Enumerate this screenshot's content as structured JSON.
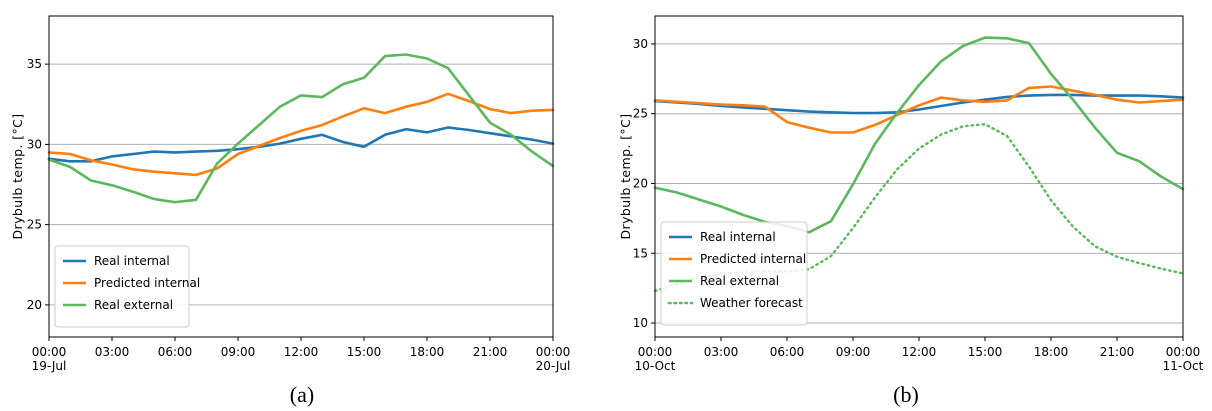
{
  "chart_data": [
    {
      "type": "line",
      "caption": "(a)",
      "ylabel": "Drybulb temp. [°C]",
      "ylim": [
        18.0,
        38.0
      ],
      "yticks": [
        20,
        25,
        30,
        35
      ],
      "xlim": [
        0,
        24
      ],
      "xticks": [
        {
          "x": 0,
          "label": "00:00",
          "sublabel": "19-Jul"
        },
        {
          "x": 3,
          "label": "03:00",
          "sublabel": ""
        },
        {
          "x": 6,
          "label": "06:00",
          "sublabel": ""
        },
        {
          "x": 9,
          "label": "09:00",
          "sublabel": ""
        },
        {
          "x": 12,
          "label": "12:00",
          "sublabel": ""
        },
        {
          "x": 15,
          "label": "15:00",
          "sublabel": ""
        },
        {
          "x": 18,
          "label": "18:00",
          "sublabel": ""
        },
        {
          "x": 21,
          "label": "21:00",
          "sublabel": ""
        },
        {
          "x": 24,
          "label": "00:00",
          "sublabel": "20-Jul"
        }
      ],
      "grid": "horizontal",
      "legend_position": "lower-left",
      "series": [
        {
          "name": "Real internal",
          "color": "#1f77b4",
          "style": "solid",
          "x": [
            0,
            1,
            2,
            3,
            4,
            5,
            6,
            7,
            8,
            9,
            10,
            11,
            12,
            13,
            14,
            15,
            16,
            17,
            18,
            19,
            20,
            21,
            22,
            23,
            24
          ],
          "y": [
            29.1,
            28.95,
            28.95,
            29.25,
            29.4,
            29.55,
            29.5,
            29.55,
            29.6,
            29.7,
            29.85,
            30.05,
            30.35,
            30.6,
            30.15,
            29.85,
            30.6,
            30.95,
            30.75,
            31.05,
            30.9,
            30.7,
            30.5,
            30.3,
            30.05
          ]
        },
        {
          "name": "Predicted internal",
          "color": "#ff7f0e",
          "style": "solid",
          "x": [
            0,
            1,
            2,
            3,
            4,
            5,
            6,
            7,
            8,
            9,
            10,
            11,
            12,
            13,
            14,
            15,
            16,
            17,
            18,
            19,
            20,
            21,
            22,
            23,
            24
          ],
          "y": [
            29.5,
            29.4,
            29.0,
            28.75,
            28.45,
            28.3,
            28.2,
            28.1,
            28.5,
            29.4,
            29.9,
            30.4,
            30.85,
            31.2,
            31.75,
            32.25,
            31.95,
            32.35,
            32.65,
            33.15,
            32.7,
            32.2,
            31.95,
            32.1,
            32.15
          ]
        },
        {
          "name": "Real external",
          "color": "#5cb85c",
          "style": "solid",
          "x": [
            0,
            1,
            2,
            3,
            4,
            5,
            6,
            7,
            8,
            9,
            10,
            11,
            12,
            13,
            14,
            15,
            16,
            17,
            18,
            19,
            20,
            21,
            22,
            23,
            24
          ],
          "y": [
            29.05,
            28.6,
            27.75,
            27.45,
            27.05,
            26.6,
            26.4,
            26.55,
            28.8,
            30.05,
            31.2,
            32.35,
            33.05,
            32.95,
            33.75,
            34.15,
            35.5,
            35.6,
            35.35,
            34.75,
            33.05,
            31.35,
            30.6,
            29.55,
            28.65
          ]
        }
      ]
    },
    {
      "type": "line",
      "caption": "(b)",
      "ylabel": "Drybulb temp. [°C]",
      "ylim": [
        9.0,
        32.0
      ],
      "yticks": [
        10,
        15,
        20,
        25,
        30
      ],
      "xlim": [
        0,
        24
      ],
      "xticks": [
        {
          "x": 0,
          "label": "00:00",
          "sublabel": "10-Oct"
        },
        {
          "x": 3,
          "label": "03:00",
          "sublabel": ""
        },
        {
          "x": 6,
          "label": "06:00",
          "sublabel": ""
        },
        {
          "x": 9,
          "label": "09:00",
          "sublabel": ""
        },
        {
          "x": 12,
          "label": "12:00",
          "sublabel": ""
        },
        {
          "x": 15,
          "label": "15:00",
          "sublabel": ""
        },
        {
          "x": 18,
          "label": "18:00",
          "sublabel": ""
        },
        {
          "x": 21,
          "label": "21:00",
          "sublabel": ""
        },
        {
          "x": 24,
          "label": "00:00",
          "sublabel": "11-Oct"
        }
      ],
      "grid": "horizontal",
      "legend_position": "lower-left",
      "series": [
        {
          "name": "Real internal",
          "color": "#1f77b4",
          "style": "solid",
          "x": [
            0,
            1,
            2,
            3,
            4,
            5,
            6,
            7,
            8,
            9,
            10,
            11,
            12,
            13,
            14,
            15,
            16,
            17,
            18,
            19,
            20,
            21,
            22,
            23,
            24
          ],
          "y": [
            25.9,
            25.8,
            25.7,
            25.55,
            25.45,
            25.35,
            25.25,
            25.15,
            25.1,
            25.05,
            25.05,
            25.1,
            25.3,
            25.55,
            25.8,
            26.0,
            26.2,
            26.3,
            26.35,
            26.35,
            26.3,
            26.3,
            26.3,
            26.25,
            26.15
          ]
        },
        {
          "name": "Predicted internal",
          "color": "#ff7f0e",
          "style": "solid",
          "x": [
            0,
            1,
            2,
            3,
            4,
            5,
            6,
            7,
            8,
            9,
            10,
            11,
            12,
            13,
            14,
            15,
            16,
            17,
            18,
            19,
            20,
            21,
            22,
            23,
            24
          ],
          "y": [
            25.95,
            25.85,
            25.75,
            25.65,
            25.6,
            25.5,
            24.4,
            24.0,
            23.65,
            23.65,
            24.2,
            24.9,
            25.6,
            26.15,
            25.95,
            25.85,
            25.95,
            26.85,
            26.95,
            26.65,
            26.35,
            26.0,
            25.8,
            25.9,
            26.0
          ]
        },
        {
          "name": "Real external",
          "color": "#5cb85c",
          "style": "solid",
          "x": [
            0,
            1,
            2,
            3,
            4,
            5,
            6,
            7,
            8,
            9,
            10,
            11,
            12,
            13,
            14,
            15,
            16,
            17,
            18,
            19,
            20,
            21,
            22,
            23,
            24
          ],
          "y": [
            19.7,
            19.35,
            18.85,
            18.35,
            17.75,
            17.25,
            16.95,
            16.5,
            17.3,
            19.95,
            22.85,
            25.05,
            27.05,
            28.75,
            29.85,
            30.45,
            30.4,
            30.05,
            27.85,
            26.0,
            24.0,
            22.2,
            21.6,
            20.5,
            19.6
          ]
        },
        {
          "name": "Weather forecast",
          "color": "#5cb85c",
          "style": "dotted",
          "x": [
            0,
            1,
            2,
            3,
            4,
            5,
            6,
            7,
            8,
            9,
            10,
            11,
            12,
            13,
            14,
            15,
            16,
            17,
            18,
            19,
            20,
            21,
            22,
            23,
            24
          ],
          "y": [
            12.3,
            12.8,
            13.25,
            13.5,
            13.65,
            13.7,
            13.7,
            13.85,
            14.8,
            16.8,
            19.0,
            21.0,
            22.5,
            23.5,
            24.1,
            24.25,
            23.4,
            21.2,
            18.8,
            16.9,
            15.5,
            14.75,
            14.3,
            13.9,
            13.55
          ]
        }
      ]
    }
  ]
}
